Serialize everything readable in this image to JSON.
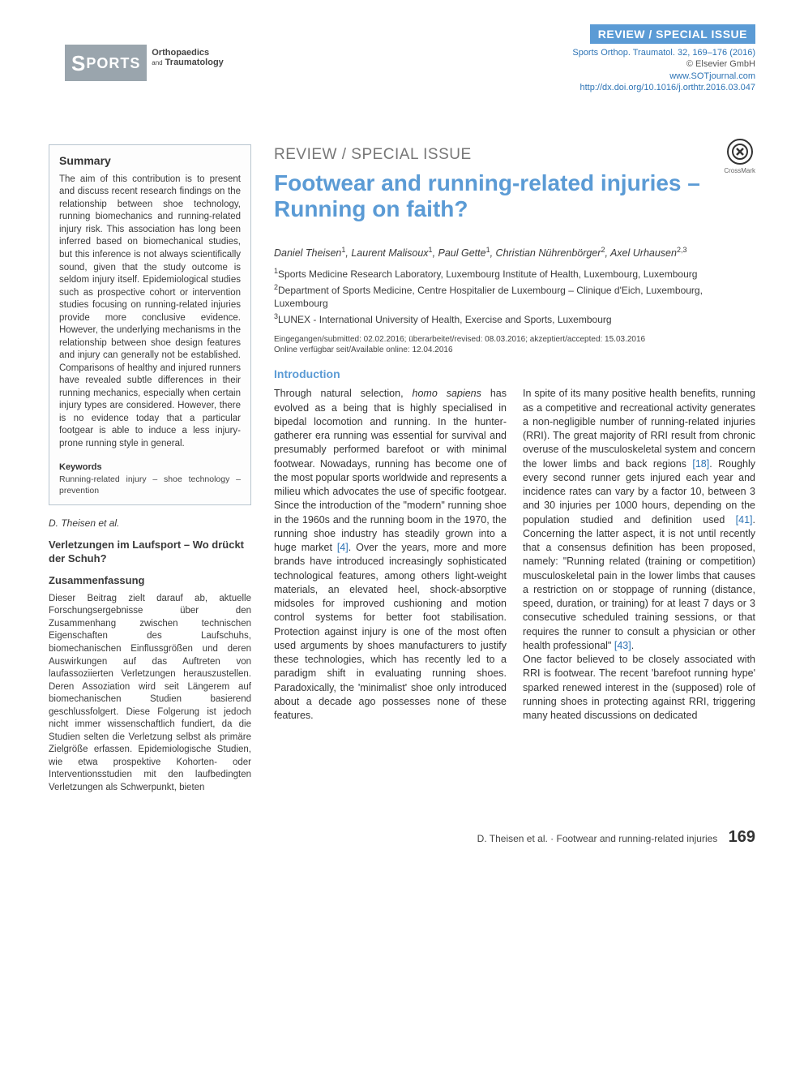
{
  "header": {
    "banner": "REVIEW / SPECIAL ISSUE",
    "citation": "Sports Orthop. Traumatol. 32, 169–176 (2016)",
    "publisher": "© Elsevier GmbH",
    "url": "www.SOTjournal.com",
    "doi": "http://dx.doi.org/10.1016/j.orthtr.2016.03.047",
    "journal_logo_sports": "PORTS",
    "journal_logo_line1": "Orthopaedics",
    "journal_logo_and": "and",
    "journal_logo_line2": "Traumatology"
  },
  "sidebar": {
    "summary_title": "Summary",
    "summary_text": "The aim of this contribution is to present and discuss recent research findings on the relationship between shoe technology, running biomechanics and running-related injury risk. This association has long been inferred based on biomechanical studies, but this inference is not always scientifically sound, given that the study outcome is seldom injury itself. Epidemiological studies such as prospective cohort or intervention studies focusing on running-related injuries provide more conclusive evidence. However, the underlying mechanisms in the relationship between shoe design features and injury can generally not be established. Comparisons of healthy and injured runners have revealed subtle differences in their running mechanics, especially when certain injury types are considered. However, there is no evidence today that a particular footgear is able to induce a less injury-prone running style in general.",
    "keywords_title": "Keywords",
    "keywords_list": "Running-related injury – shoe technology – prevention",
    "cit_author": "D. Theisen et al.",
    "de_title": "Verletzungen im Laufsport – Wo drückt der Schuh?",
    "de_sub": "Zusammenfassung",
    "de_text": "Dieser Beitrag zielt darauf ab, aktuelle Forschungsergebnisse über den Zusammenhang zwischen technischen Eigenschaften des Laufschuhs, biomechanischen Einflussgrößen und deren Auswirkungen auf das Auftreten von laufassoziierten Verletzungen herauszustellen. Deren Assoziation wird seit Längerem auf biomechanischen Studien basierend geschlussfolgert. Diese Folgerung ist jedoch nicht immer wissenschaftlich fundiert, da die Studien selten die Verletzung selbst als primäre Zielgröße erfassen. Epidemiologische Studien, wie etwa prospektive Kohorten- oder Interventionsstudien mit den laufbedingten Verletzungen als Schwerpunkt, bieten"
  },
  "article": {
    "crossmark_label": "CrossMark",
    "type": "REVIEW / SPECIAL ISSUE",
    "title": "Footwear and running-related injuries – Running on faith?",
    "authors_html": "Daniel Theisen<sup>1</sup>, Laurent Malisoux<sup>1</sup>, Paul Gette<sup>1</sup>, Christian Nührenbörger<sup>2</sup>, Axel Urhausen<sup>2,3</sup>",
    "affiliations": [
      "<sup>1</sup>Sports Medicine Research Laboratory, Luxembourg Institute of Health, Luxembourg, Luxembourg",
      "<sup>2</sup>Department of Sports Medicine, Centre Hospitalier de Luxembourg – Clinique d'Eich, Luxembourg, Luxembourg",
      "<sup>3</sup>LUNEX - International University of Health, Exercise and Sports, Luxembourg"
    ],
    "dates_line1": "Eingegangen/submitted: 02.02.2016; überarbeitet/revised: 08.03.2016; akzeptiert/accepted: 15.03.2016",
    "dates_line2": "Online verfügbar seit/Available online: 12.04.2016",
    "section_title": "Introduction",
    "body_html": "Through natural selection, <span class=\"italic\">homo sapiens</span> has evolved as a being that is highly specialised in bipedal locomotion and running. In the hunter-gatherer era running was essential for survival and presumably performed barefoot or with minimal footwear. Nowadays, running has become one of the most popular sports worldwide and represents a milieu which advocates the use of specific footgear. Since the introduction of the \"modern\" running shoe in the 1960s and the running boom in the 1970, the running shoe industry has steadily grown into a huge market <span class=\"ref\">[4]</span>. Over the years, more and more brands have introduced increasingly sophisticated technological features, among others light-weight materials, an elevated heel, shock-absorptive midsoles for improved cushioning and motion control systems for better foot stabilisation. Protection against injury is one of the most often used arguments by shoes manufacturers to justify these technologies, which has recently led to a paradigm shift in evaluating running shoes. Paradoxically, the 'minimalist' shoe only introduced about a decade ago possesses none of these features.<br>In spite of its many positive health benefits, running as a competitive and recreational activity generates a non-negligible number of running-related injuries (RRI). The great majority of RRI result from chronic overuse of the musculoskeletal system and concern the lower limbs and back regions <span class=\"ref\">[18]</span>. Roughly every second runner gets injured each year and incidence rates can vary by a factor 10, between 3 and 30 injuries per 1000 hours, depending on the population studied and definition used <span class=\"ref\">[41]</span>. Concerning the latter aspect, it is not until recently that a consensus definition has been proposed, namely: \"Running related (training or competition) musculoskeletal pain in the lower limbs that causes a restriction on or stoppage of running (distance, speed, duration, or training) for at least 7 days or 3 consecutive scheduled training sessions, or that requires the runner to consult a physician or other health professional\" <span class=\"ref\">[43]</span>.<br>One factor believed to be closely associated with RRI is footwear. The recent 'barefoot running hype' sparked renewed interest in the (supposed) role of running shoes in protecting against RRI, triggering many heated discussions on dedicated"
  },
  "footer": {
    "author": "D. Theisen et al.",
    "short_title": "Footwear and running-related injuries",
    "page": "169"
  },
  "colors": {
    "accent": "#5b9bd5",
    "link": "#2e74b5",
    "text": "#3a3a3a",
    "border": "#b8c5cf"
  }
}
